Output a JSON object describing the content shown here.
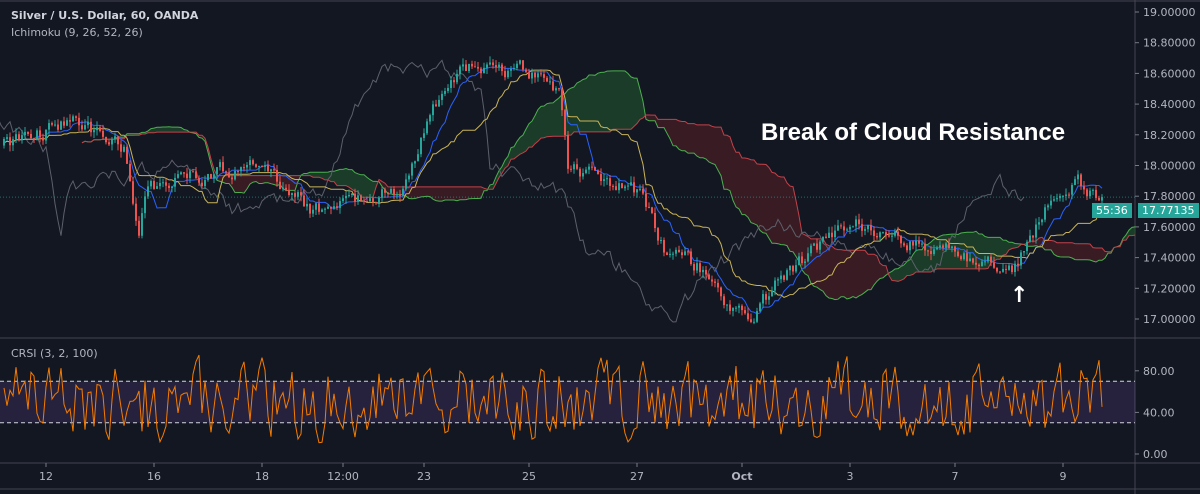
{
  "header": {
    "symbol_title": "Silver / U.S. Dollar, 60, OANDA",
    "indicator": "Ichimoku (9, 26, 52, 26)",
    "crsi_label": "CRSI (3, 2, 100)"
  },
  "annotation": {
    "text": "Break of Cloud Resistance",
    "arrow": "↑"
  },
  "price_tags": {
    "last_price": "17.77135",
    "countdown": "55:36"
  },
  "colors": {
    "up": "#26a69a",
    "down": "#ef5350",
    "bg": "#131722",
    "crsi": "#f57c00",
    "tenkan": "#2962ff",
    "kijun": "#c9b458",
    "chikou": "#5d606b",
    "cloud_up": "#1e4d2b",
    "cloud_down": "#4a1f24"
  },
  "chart_data": [
    {
      "type": "candlestick",
      "title": "Silver / U.S. Dollar, 60, OANDA",
      "ylim": [
        16.9,
        19.0
      ],
      "yticks": [
        "19.00000",
        "18.80000",
        "18.60000",
        "18.40000",
        "18.20000",
        "18.00000",
        "17.80000",
        "17.60000",
        "17.40000",
        "17.20000",
        "17.00000"
      ],
      "ytick_values": [
        19.0,
        18.8,
        18.6,
        18.4,
        18.2,
        18.0,
        17.8,
        17.6,
        17.4,
        17.2,
        17.0
      ],
      "xticks": [
        "12",
        "16",
        "18",
        "12:00",
        "23",
        "25",
        "27",
        "Oct",
        "3",
        "7",
        "9"
      ],
      "xtick_bars": [
        14,
        50,
        86,
        113,
        140,
        175,
        211,
        246,
        282,
        317,
        353
      ],
      "bar_count": 367,
      "price_path": [
        [
          1,
          18.13
        ],
        [
          23,
          18.3
        ],
        [
          40,
          18.13
        ],
        [
          45,
          17.51
        ],
        [
          48,
          17.87
        ],
        [
          83,
          18.0
        ],
        [
          103,
          17.71
        ],
        [
          133,
          17.84
        ],
        [
          143,
          18.36
        ],
        [
          155,
          18.65
        ],
        [
          167,
          18.59
        ],
        [
          173,
          18.62
        ],
        [
          185,
          18.49
        ],
        [
          188,
          18.0
        ],
        [
          213,
          17.81
        ],
        [
          220,
          17.45
        ],
        [
          233,
          17.32
        ],
        [
          248,
          16.96
        ],
        [
          257,
          17.22
        ],
        [
          273,
          17.51
        ],
        [
          283,
          17.64
        ],
        [
          310,
          17.45
        ],
        [
          337,
          17.35
        ],
        [
          347,
          17.71
        ],
        [
          358,
          17.87
        ],
        [
          366,
          17.78
        ]
      ],
      "ichimoku": {
        "tenkan": 9,
        "kijun": 26,
        "span_b": 52,
        "displacement": 26
      }
    },
    {
      "type": "line",
      "title": "CRSI (3, 2, 100)",
      "ylim": [
        0,
        100
      ],
      "yticks": [
        "80.00",
        "40.00",
        "0.00"
      ],
      "ytick_values": [
        80,
        40,
        0
      ],
      "bands": [
        30,
        70
      ],
      "range": [
        5,
        100
      ]
    }
  ]
}
